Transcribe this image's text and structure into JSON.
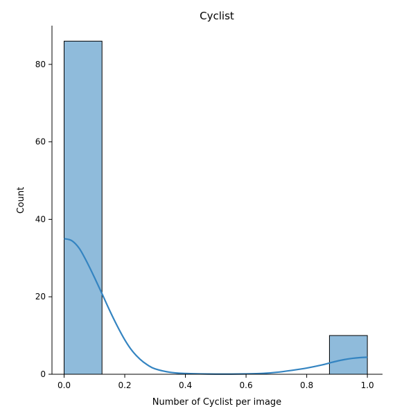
{
  "chart_data": {
    "type": "bar",
    "title": "Cyclist",
    "xlabel": "Number of Cyclist per image",
    "ylabel": "Count",
    "xlim": [
      -0.04,
      1.05
    ],
    "ylim": [
      0,
      90
    ],
    "x_ticks": [
      "0.0",
      "0.2",
      "0.4",
      "0.6",
      "0.8",
      "1.0"
    ],
    "y_ticks": [
      "0",
      "20",
      "40",
      "60",
      "80"
    ],
    "bins": [
      {
        "x0": 0.0,
        "x1": 0.125,
        "count": 86
      },
      {
        "x0": 0.875,
        "x1": 1.0,
        "count": 10
      }
    ],
    "kde_curve": {
      "x": [
        0.0,
        0.025,
        0.05,
        0.075,
        0.1,
        0.125,
        0.15,
        0.175,
        0.2,
        0.225,
        0.25,
        0.275,
        0.3,
        0.35,
        0.4,
        0.45,
        0.5,
        0.55,
        0.6,
        0.65,
        0.7,
        0.75,
        0.8,
        0.85,
        0.875,
        0.9,
        0.925,
        0.95,
        0.975,
        1.0
      ],
      "y": [
        35.0,
        34.5,
        32.5,
        29.0,
        25.0,
        20.8,
        16.5,
        12.5,
        8.9,
        6.0,
        3.9,
        2.4,
        1.4,
        0.5,
        0.2,
        0.1,
        0.05,
        0.05,
        0.1,
        0.2,
        0.5,
        1.0,
        1.6,
        2.4,
        2.9,
        3.4,
        3.8,
        4.1,
        4.3,
        4.4
      ]
    },
    "grid": false,
    "colors": {
      "bar_fill": "#8fbbdb",
      "bar_edge": "#000000",
      "kde_line": "#3484c1",
      "axis": "#000000"
    }
  }
}
